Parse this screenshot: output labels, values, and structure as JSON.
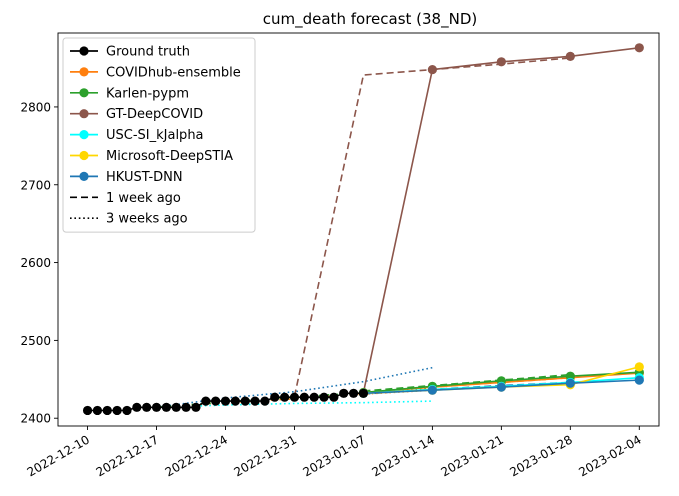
{
  "chart_data": {
    "type": "line",
    "title": "cum_death forecast (38_ND)",
    "xlabel": "",
    "ylabel": "",
    "xlim": [
      "2022-12-07",
      "2023-02-06"
    ],
    "ylim": [
      2390,
      2895
    ],
    "x_ticks": [
      "2022-12-10",
      "2022-12-17",
      "2022-12-24",
      "2022-12-31",
      "2023-01-07",
      "2023-01-14",
      "2023-01-21",
      "2023-01-28",
      "2023-02-04"
    ],
    "y_ticks": [
      2400,
      2500,
      2600,
      2700,
      2800
    ],
    "legend_position": "upper-left",
    "legend": [
      {
        "label": "Ground truth",
        "color": "#000000",
        "style": "solid",
        "marker": true
      },
      {
        "label": "COVIDhub-ensemble",
        "color": "#ff7f0e",
        "style": "solid",
        "marker": true
      },
      {
        "label": "Karlen-pypm",
        "color": "#2ca02c",
        "style": "solid",
        "marker": true
      },
      {
        "label": "GT-DeepCOVID",
        "color": "#8c564b",
        "style": "solid",
        "marker": true
      },
      {
        "label": "USC-SI_kJalpha",
        "color": "#00ffff",
        "style": "solid",
        "marker": true
      },
      {
        "label": "Microsoft-DeepSTIA",
        "color": "#ffd700",
        "style": "solid",
        "marker": true
      },
      {
        "label": "HKUST-DNN",
        "color": "#1f77b4",
        "style": "solid",
        "marker": true
      },
      {
        "label": "1 week ago",
        "color": "#000000",
        "style": "dashed",
        "marker": false
      },
      {
        "label": "3 weeks ago",
        "color": "#000000",
        "style": "dotted",
        "marker": false
      }
    ],
    "series": [
      {
        "color": "#8c564b",
        "style": "dashed",
        "markers": false,
        "points": [
          [
            "2022-12-31",
            2428
          ],
          [
            "2023-01-07",
            2841
          ],
          [
            "2023-01-14",
            2848
          ],
          [
            "2023-01-21",
            2855
          ],
          [
            "2023-01-28",
            2863
          ]
        ]
      },
      {
        "color": "#ff7f0e",
        "style": "dashed",
        "markers": false,
        "points": [
          [
            "2023-01-07",
            2433
          ],
          [
            "2023-01-14",
            2440
          ],
          [
            "2023-01-21",
            2446
          ],
          [
            "2023-01-28",
            2452
          ]
        ]
      },
      {
        "color": "#2ca02c",
        "style": "dashed",
        "markers": false,
        "points": [
          [
            "2023-01-07",
            2435
          ],
          [
            "2023-01-14",
            2442
          ],
          [
            "2023-01-21",
            2449
          ],
          [
            "2023-01-28",
            2456
          ]
        ]
      },
      {
        "color": "#1f77b4",
        "style": "dashed",
        "markers": false,
        "points": [
          [
            "2023-01-07",
            2431
          ],
          [
            "2023-01-14",
            2437
          ],
          [
            "2023-01-21",
            2442
          ],
          [
            "2023-01-28",
            2446
          ]
        ]
      },
      {
        "color": "#1f77b4",
        "style": "dotted",
        "markers": false,
        "points": [
          [
            "2022-12-17",
            2414
          ],
          [
            "2022-12-24",
            2426
          ],
          [
            "2022-12-31",
            2434
          ],
          [
            "2023-01-07",
            2447
          ],
          [
            "2023-01-14",
            2465
          ]
        ]
      },
      {
        "color": "#00ffff",
        "style": "dotted",
        "markers": false,
        "points": [
          [
            "2022-12-17",
            2414
          ],
          [
            "2022-12-24",
            2417
          ],
          [
            "2022-12-31",
            2419
          ],
          [
            "2023-01-07",
            2420
          ],
          [
            "2023-01-14",
            2422
          ]
        ]
      },
      {
        "color": "#ff7f0e",
        "style": "dotted",
        "markers": false,
        "points": [
          [
            "2022-12-17",
            2414
          ],
          [
            "2022-12-24",
            2420
          ],
          [
            "2022-12-31",
            2425
          ],
          [
            "2023-01-07",
            2431
          ],
          [
            "2023-01-14",
            2436
          ]
        ]
      },
      {
        "color": "#2ca02c",
        "style": "dotted",
        "markers": false,
        "points": [
          [
            "2022-12-17",
            2414
          ],
          [
            "2022-12-24",
            2421
          ],
          [
            "2022-12-31",
            2427
          ],
          [
            "2023-01-07",
            2433
          ],
          [
            "2023-01-14",
            2439
          ]
        ]
      },
      {
        "name": "GT-DeepCOVID",
        "color": "#8c564b",
        "style": "solid",
        "markers": true,
        "points": [
          [
            "2023-01-07",
            2433
          ],
          [
            "2023-01-14",
            2848
          ],
          [
            "2023-01-21",
            2858
          ],
          [
            "2023-01-28",
            2865
          ],
          [
            "2023-02-04",
            2876
          ]
        ]
      },
      {
        "name": "COVIDhub-ensemble",
        "color": "#ff7f0e",
        "style": "solid",
        "markers": true,
        "points": [
          [
            "2023-01-07",
            2433
          ],
          [
            "2023-01-14",
            2440
          ],
          [
            "2023-01-21",
            2446
          ],
          [
            "2023-01-28",
            2452
          ],
          [
            "2023-02-04",
            2458
          ]
        ]
      },
      {
        "name": "Karlen-pypm",
        "color": "#2ca02c",
        "style": "solid",
        "markers": true,
        "points": [
          [
            "2023-01-07",
            2433
          ],
          [
            "2023-01-14",
            2441
          ],
          [
            "2023-01-21",
            2448
          ],
          [
            "2023-01-28",
            2454
          ],
          [
            "2023-02-04",
            2459
          ]
        ]
      },
      {
        "name": "USC-SI_kJalpha",
        "color": "#00ffff",
        "style": "solid",
        "markers": true,
        "points": [
          [
            "2023-01-07",
            2432
          ],
          [
            "2023-01-14",
            2437
          ],
          [
            "2023-01-21",
            2441
          ],
          [
            "2023-01-28",
            2446
          ],
          [
            "2023-02-04",
            2452
          ]
        ]
      },
      {
        "name": "Microsoft-DeepSTIA",
        "color": "#ffd700",
        "style": "solid",
        "markers": true,
        "points": [
          [
            "2023-01-07",
            2432
          ],
          [
            "2023-01-14",
            2436
          ],
          [
            "2023-01-21",
            2440
          ],
          [
            "2023-01-28",
            2443
          ],
          [
            "2023-02-04",
            2466
          ]
        ]
      },
      {
        "name": "HKUST-DNN",
        "color": "#1f77b4",
        "style": "solid",
        "markers": true,
        "points": [
          [
            "2023-01-07",
            2432
          ],
          [
            "2023-01-14",
            2436
          ],
          [
            "2023-01-21",
            2440
          ],
          [
            "2023-01-28",
            2445
          ],
          [
            "2023-02-04",
            2449
          ]
        ]
      },
      {
        "name": "Ground truth",
        "color": "#000000",
        "style": "solid",
        "markers": true,
        "points": [
          [
            "2022-12-10",
            2410
          ],
          [
            "2022-12-11",
            2410
          ],
          [
            "2022-12-12",
            2410
          ],
          [
            "2022-12-13",
            2410
          ],
          [
            "2022-12-14",
            2410
          ],
          [
            "2022-12-15",
            2414
          ],
          [
            "2022-12-16",
            2414
          ],
          [
            "2022-12-17",
            2414
          ],
          [
            "2022-12-18",
            2414
          ],
          [
            "2022-12-19",
            2414
          ],
          [
            "2022-12-20",
            2414
          ],
          [
            "2022-12-21",
            2414
          ],
          [
            "2022-12-22",
            2422
          ],
          [
            "2022-12-23",
            2422
          ],
          [
            "2022-12-24",
            2422
          ],
          [
            "2022-12-25",
            2422
          ],
          [
            "2022-12-26",
            2422
          ],
          [
            "2022-12-27",
            2422
          ],
          [
            "2022-12-28",
            2422
          ],
          [
            "2022-12-29",
            2427
          ],
          [
            "2022-12-30",
            2427
          ],
          [
            "2022-12-31",
            2427
          ],
          [
            "2023-01-01",
            2427
          ],
          [
            "2023-01-02",
            2427
          ],
          [
            "2023-01-03",
            2427
          ],
          [
            "2023-01-04",
            2427
          ],
          [
            "2023-01-05",
            2432
          ],
          [
            "2023-01-06",
            2432
          ],
          [
            "2023-01-07",
            2432
          ]
        ]
      }
    ]
  }
}
